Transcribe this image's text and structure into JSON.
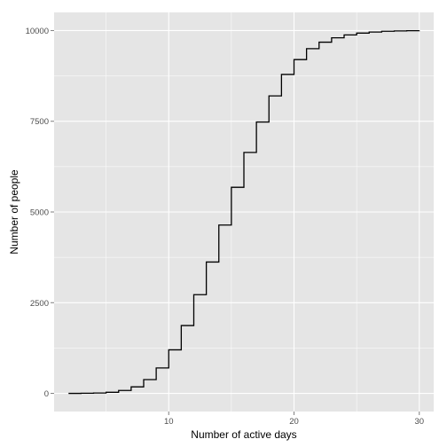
{
  "chart_data": {
    "type": "line",
    "step": true,
    "xlabel": "Number of active days",
    "ylabel": "Number of people",
    "xlim": [
      0.85,
      31.15
    ],
    "ylim": [
      -500,
      10500
    ],
    "x_ticks": [
      10,
      20,
      30
    ],
    "y_ticks": [
      0,
      2500,
      5000,
      7500,
      10000
    ],
    "x_tick_labels": [
      "10",
      "20",
      "30"
    ],
    "y_tick_labels": [
      "0",
      "2500",
      "5000",
      "7500",
      "10000"
    ],
    "grid": true,
    "colors": {
      "panel": "#e5e5e5",
      "grid": "#ffffff",
      "line": "#000000"
    },
    "series": [
      {
        "x": [
          2,
          3,
          4,
          5,
          6,
          7,
          8,
          9,
          10,
          11,
          12,
          13,
          14,
          15,
          16,
          17,
          18,
          19,
          20,
          21,
          22,
          23,
          24,
          25,
          26,
          27,
          28,
          29,
          30
        ],
        "y": [
          0,
          5,
          10,
          30,
          80,
          180,
          380,
          700,
          1200,
          1870,
          2720,
          3620,
          4640,
          5680,
          6640,
          7480,
          8200,
          8790,
          9200,
          9500,
          9680,
          9800,
          9880,
          9930,
          9960,
          9980,
          9990,
          9996,
          10000
        ]
      }
    ]
  }
}
